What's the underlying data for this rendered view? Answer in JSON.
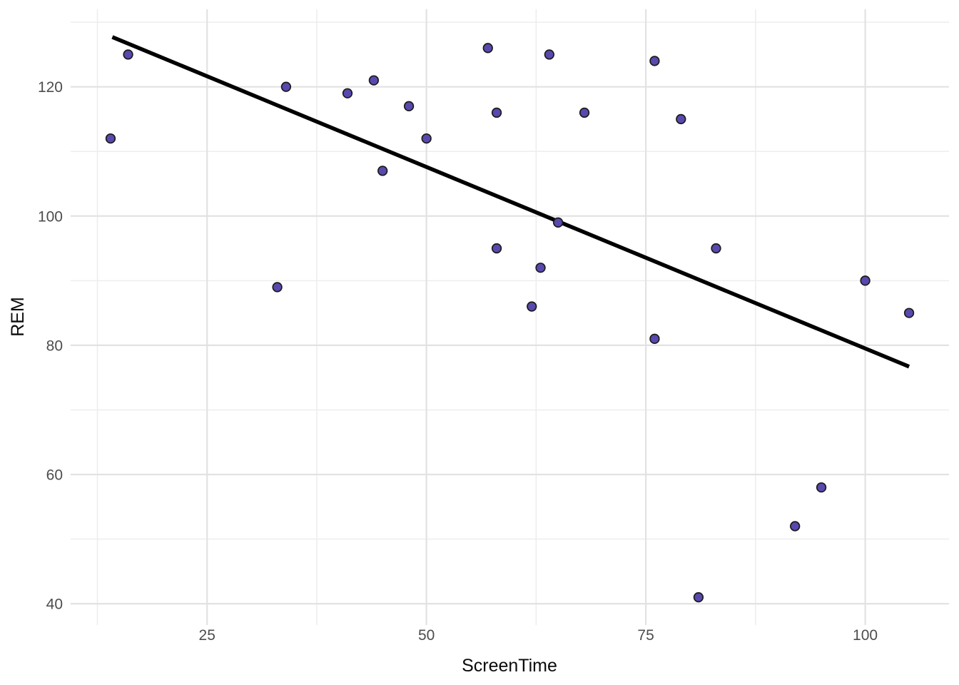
{
  "chart_data": {
    "type": "scatter",
    "title": "",
    "xlabel": "ScreenTime",
    "ylabel": "REM",
    "xlim": [
      9.45,
      109.55
    ],
    "ylim": [
      36.7,
      132.0
    ],
    "x_ticks": [
      25,
      50,
      75,
      100
    ],
    "x_minor_ticks": [
      12.5,
      37.5,
      62.5,
      87.5
    ],
    "y_ticks": [
      40,
      60,
      80,
      100,
      120
    ],
    "y_minor_ticks": [
      50,
      70,
      90,
      110,
      130
    ],
    "grid": true,
    "legend": false,
    "points": [
      [
        14,
        112
      ],
      [
        16,
        125
      ],
      [
        33,
        89
      ],
      [
        34,
        120
      ],
      [
        41,
        119
      ],
      [
        44,
        121
      ],
      [
        45,
        107
      ],
      [
        48,
        117
      ],
      [
        50,
        112
      ],
      [
        57,
        126
      ],
      [
        58,
        95
      ],
      [
        58,
        116
      ],
      [
        62,
        86
      ],
      [
        63,
        92
      ],
      [
        64,
        125
      ],
      [
        65,
        99
      ],
      [
        68,
        116
      ],
      [
        76,
        81
      ],
      [
        76,
        124
      ],
      [
        79,
        115
      ],
      [
        81,
        41
      ],
      [
        83,
        95
      ],
      [
        92,
        52
      ],
      [
        95,
        58
      ],
      [
        100,
        90
      ],
      [
        105,
        85
      ]
    ],
    "trend_line": {
      "x1": 14.2,
      "y1": 127.7,
      "x2": 105.0,
      "y2": 76.7
    },
    "colors": {
      "background": "#FFFFFF",
      "point_fill": "#5849AE",
      "point_stroke": "#1A1A1A",
      "trend_line": "#000000",
      "grid_major": "#E2E2E2",
      "grid_minor": "#EDEDED",
      "tick_label": "#4D4D4D",
      "axis_title": "#0A0A0A"
    }
  }
}
